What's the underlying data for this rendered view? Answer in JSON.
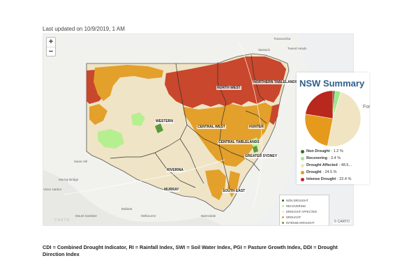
{
  "last_updated": "Last updated on 10/9/2019, 1 AM",
  "zoom": {
    "in_label": "+",
    "out_label": "−"
  },
  "places": {
    "toowoomba": "Toowoomba",
    "warwick": "Warwick",
    "tweed_heads": "Tweed Heads",
    "swan_hill": "Swan Hill",
    "murray_bridge": "Murray Bridge",
    "victor_harbor": "Victor Harbor",
    "mount_gambier": "Mount Gambier",
    "ballarat": "Ballarat",
    "melbourne": "Melbourne",
    "bairnsdale": "Bairnsdale"
  },
  "regions": {
    "north_west": "NORTH WEST",
    "northern_tablelands": "NORTHERN TABLELANDS",
    "western": "WESTERN",
    "central_west": "CENTRAL WEST",
    "hunter": "HUNTER",
    "central_tablelands": "CENTRAL TABLELANDS",
    "greater_sydney": "GREATER SYDNEY",
    "riverina": "RIVERINA",
    "murray": "MURRAY",
    "south_east": "SOUTH EAST"
  },
  "map_legend": [
    {
      "label": "NON DROUGHT",
      "color": "#2e6b1f"
    },
    {
      "label": "RECOVERING",
      "color": "#b6ef8f"
    },
    {
      "label": "DROUGHT AFFECTED",
      "color": "#efe4c6"
    },
    {
      "label": "DROUGHT",
      "color": "#e3a02a"
    },
    {
      "label": "INTENSE DROUGHT",
      "color": "#5b9e3a"
    }
  ],
  "attribution": {
    "left": "CARTO",
    "right": "© CARTO"
  },
  "summary": {
    "title": "NSW Summary",
    "for_label": "For",
    "items": [
      {
        "name": "Non Drought",
        "value_text": "1.2 %",
        "value": 1.2,
        "color": "#3a6b1e"
      },
      {
        "name": "Recovering",
        "value_text": "3.4 %",
        "value": 3.4,
        "color": "#9be88a"
      },
      {
        "name": "Drought Affected",
        "value_text": "48.5...",
        "value": 48.5,
        "color": "#f1e4c2"
      },
      {
        "name": "Drought",
        "value_text": "24.5 %",
        "value": 24.5,
        "color": "#e59a1c"
      },
      {
        "name": "Intense Drought",
        "value_text": "22.4 %",
        "value": 22.4,
        "color": "#b8281c"
      }
    ]
  },
  "footnote": "CDI = Combined Drought Indicator, RI = Rainfall Index, SWI = Soil Water Index, PGI = Pasture Growth Index, DDI = Drought Direction Index"
}
